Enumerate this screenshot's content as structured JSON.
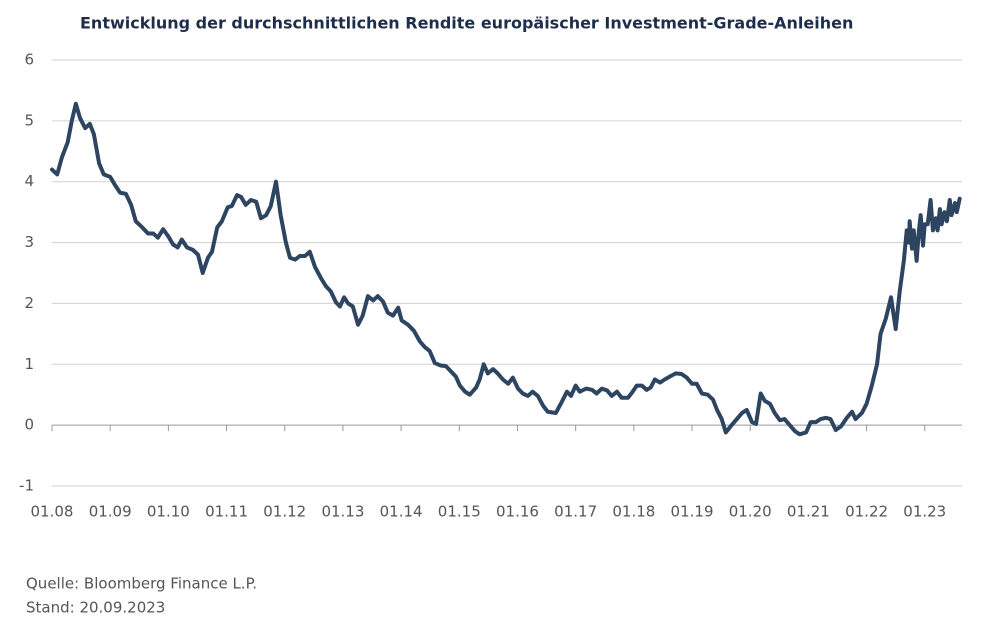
{
  "chart_data": {
    "type": "line",
    "title": "Entwicklung der durchschnittlichen Rendite europäischer Investment-Grade-Anleihen",
    "footnotes": [
      "Quelle: Bloomberg Finance L.P.",
      "Stand: 20.09.2023"
    ],
    "x": [
      8.0,
      8.09,
      8.17,
      8.27,
      8.34,
      8.41,
      8.48,
      8.57,
      8.65,
      8.72,
      8.81,
      8.89,
      9.0,
      9.08,
      9.17,
      9.27,
      9.36,
      9.44,
      9.55,
      9.65,
      9.74,
      9.82,
      9.91,
      10.0,
      10.08,
      10.16,
      10.23,
      10.32,
      10.42,
      10.51,
      10.59,
      10.68,
      10.75,
      10.84,
      10.92,
      11.02,
      11.09,
      11.18,
      11.25,
      11.33,
      11.42,
      11.51,
      11.59,
      11.68,
      11.76,
      11.85,
      11.93,
      12.02,
      12.09,
      12.18,
      12.26,
      12.35,
      12.43,
      12.52,
      12.62,
      12.71,
      12.79,
      12.88,
      12.95,
      13.02,
      13.09,
      13.17,
      13.26,
      13.34,
      13.43,
      13.52,
      13.6,
      13.69,
      13.77,
      13.86,
      13.95,
      14.01,
      14.12,
      14.22,
      14.32,
      14.41,
      14.49,
      14.58,
      14.68,
      14.77,
      14.86,
      14.94,
      15.01,
      15.1,
      15.18,
      15.29,
      15.35,
      15.42,
      15.49,
      15.58,
      15.66,
      15.75,
      15.84,
      15.92,
      16.01,
      16.09,
      16.18,
      16.26,
      16.35,
      16.44,
      16.52,
      16.66,
      16.76,
      16.85,
      16.92,
      17.0,
      17.07,
      17.18,
      17.28,
      17.36,
      17.45,
      17.54,
      17.62,
      17.71,
      17.79,
      17.9,
      17.98,
      18.05,
      18.14,
      18.22,
      18.29,
      18.36,
      18.45,
      18.53,
      18.62,
      18.72,
      18.82,
      18.91,
      19.0,
      19.08,
      19.17,
      19.27,
      19.36,
      19.43,
      19.51,
      19.58,
      19.68,
      19.77,
      19.86,
      19.94,
      20.03,
      20.1,
      20.18,
      20.25,
      20.34,
      20.42,
      20.51,
      20.59,
      20.68,
      20.77,
      20.85,
      20.96,
      21.04,
      21.13,
      21.21,
      21.3,
      21.38,
      21.47,
      21.56,
      21.66,
      21.75,
      21.81,
      21.92,
      22.0,
      22.09,
      22.18,
      22.24,
      22.33,
      22.42,
      22.5,
      22.57,
      22.64,
      22.69,
      22.73,
      22.74,
      22.78,
      22.81,
      22.86,
      22.9,
      22.93,
      22.97,
      23.0,
      23.05,
      23.1,
      23.14,
      23.19,
      23.22,
      23.26,
      23.29,
      23.34,
      23.38,
      23.43,
      23.46,
      23.52,
      23.55,
      23.6
    ],
    "series": [
      {
        "color": "#2e4561",
        "values": [
          4.2,
          4.12,
          4.4,
          4.65,
          5.0,
          5.28,
          5.05,
          4.88,
          4.95,
          4.78,
          4.3,
          4.12,
          4.08,
          3.95,
          3.82,
          3.8,
          3.62,
          3.35,
          3.25,
          3.15,
          3.15,
          3.08,
          3.22,
          3.1,
          2.97,
          2.92,
          3.05,
          2.92,
          2.88,
          2.8,
          2.5,
          2.75,
          2.85,
          3.25,
          3.35,
          3.58,
          3.6,
          3.78,
          3.75,
          3.62,
          3.7,
          3.67,
          3.4,
          3.45,
          3.6,
          4.0,
          3.45,
          3.0,
          2.75,
          2.72,
          2.78,
          2.78,
          2.85,
          2.6,
          2.42,
          2.28,
          2.2,
          2.02,
          1.95,
          2.1,
          2.0,
          1.95,
          1.65,
          1.8,
          2.12,
          2.05,
          2.12,
          2.03,
          1.85,
          1.8,
          1.93,
          1.72,
          1.65,
          1.55,
          1.38,
          1.28,
          1.22,
          1.02,
          0.98,
          0.97,
          0.88,
          0.8,
          0.65,
          0.55,
          0.5,
          0.62,
          0.75,
          1.0,
          0.85,
          0.92,
          0.85,
          0.75,
          0.68,
          0.78,
          0.6,
          0.52,
          0.48,
          0.55,
          0.48,
          0.32,
          0.22,
          0.2,
          0.38,
          0.55,
          0.48,
          0.65,
          0.55,
          0.6,
          0.58,
          0.52,
          0.6,
          0.57,
          0.48,
          0.55,
          0.45,
          0.45,
          0.55,
          0.65,
          0.65,
          0.58,
          0.62,
          0.75,
          0.7,
          0.75,
          0.8,
          0.85,
          0.84,
          0.78,
          0.68,
          0.68,
          0.52,
          0.5,
          0.42,
          0.25,
          0.1,
          -0.12,
          0.0,
          0.1,
          0.2,
          0.25,
          0.05,
          0.02,
          0.52,
          0.4,
          0.35,
          0.2,
          0.08,
          0.1,
          0.0,
          -0.1,
          -0.15,
          -0.12,
          0.05,
          0.05,
          0.1,
          0.12,
          0.1,
          -0.08,
          -0.02,
          0.12,
          0.22,
          0.1,
          0.2,
          0.35,
          0.65,
          1.0,
          1.5,
          1.75,
          2.1,
          1.58,
          2.2,
          2.7,
          3.2,
          3.0,
          3.35,
          2.9,
          3.2,
          2.7,
          3.2,
          3.45,
          2.95,
          3.3,
          3.3,
          3.7,
          3.2,
          3.4,
          3.2,
          3.55,
          3.3,
          3.5,
          3.35,
          3.7,
          3.45,
          3.65,
          3.5,
          3.72
        ]
      }
    ],
    "xlim": [
      8,
      23.64
    ],
    "xticks": [
      {
        "value": 8,
        "label": "01.08"
      },
      {
        "value": 9,
        "label": "01.09"
      },
      {
        "value": 10,
        "label": "01.10"
      },
      {
        "value": 11,
        "label": "01.11"
      },
      {
        "value": 12,
        "label": "01.12"
      },
      {
        "value": 13,
        "label": "01.13"
      },
      {
        "value": 14,
        "label": "01.14"
      },
      {
        "value": 15,
        "label": "01.15"
      },
      {
        "value": 16,
        "label": "01.16"
      },
      {
        "value": 17,
        "label": "01.17"
      },
      {
        "value": 18,
        "label": "01.18"
      },
      {
        "value": 19,
        "label": "01.19"
      },
      {
        "value": 20,
        "label": "01.20"
      },
      {
        "value": 21,
        "label": "01.21"
      },
      {
        "value": 22,
        "label": "01.22"
      },
      {
        "value": 23,
        "label": "01.23"
      }
    ],
    "ylim": [
      -1,
      6
    ],
    "yticks": [
      -1,
      0,
      1,
      2,
      3,
      4,
      5,
      6
    ],
    "grid": true
  }
}
